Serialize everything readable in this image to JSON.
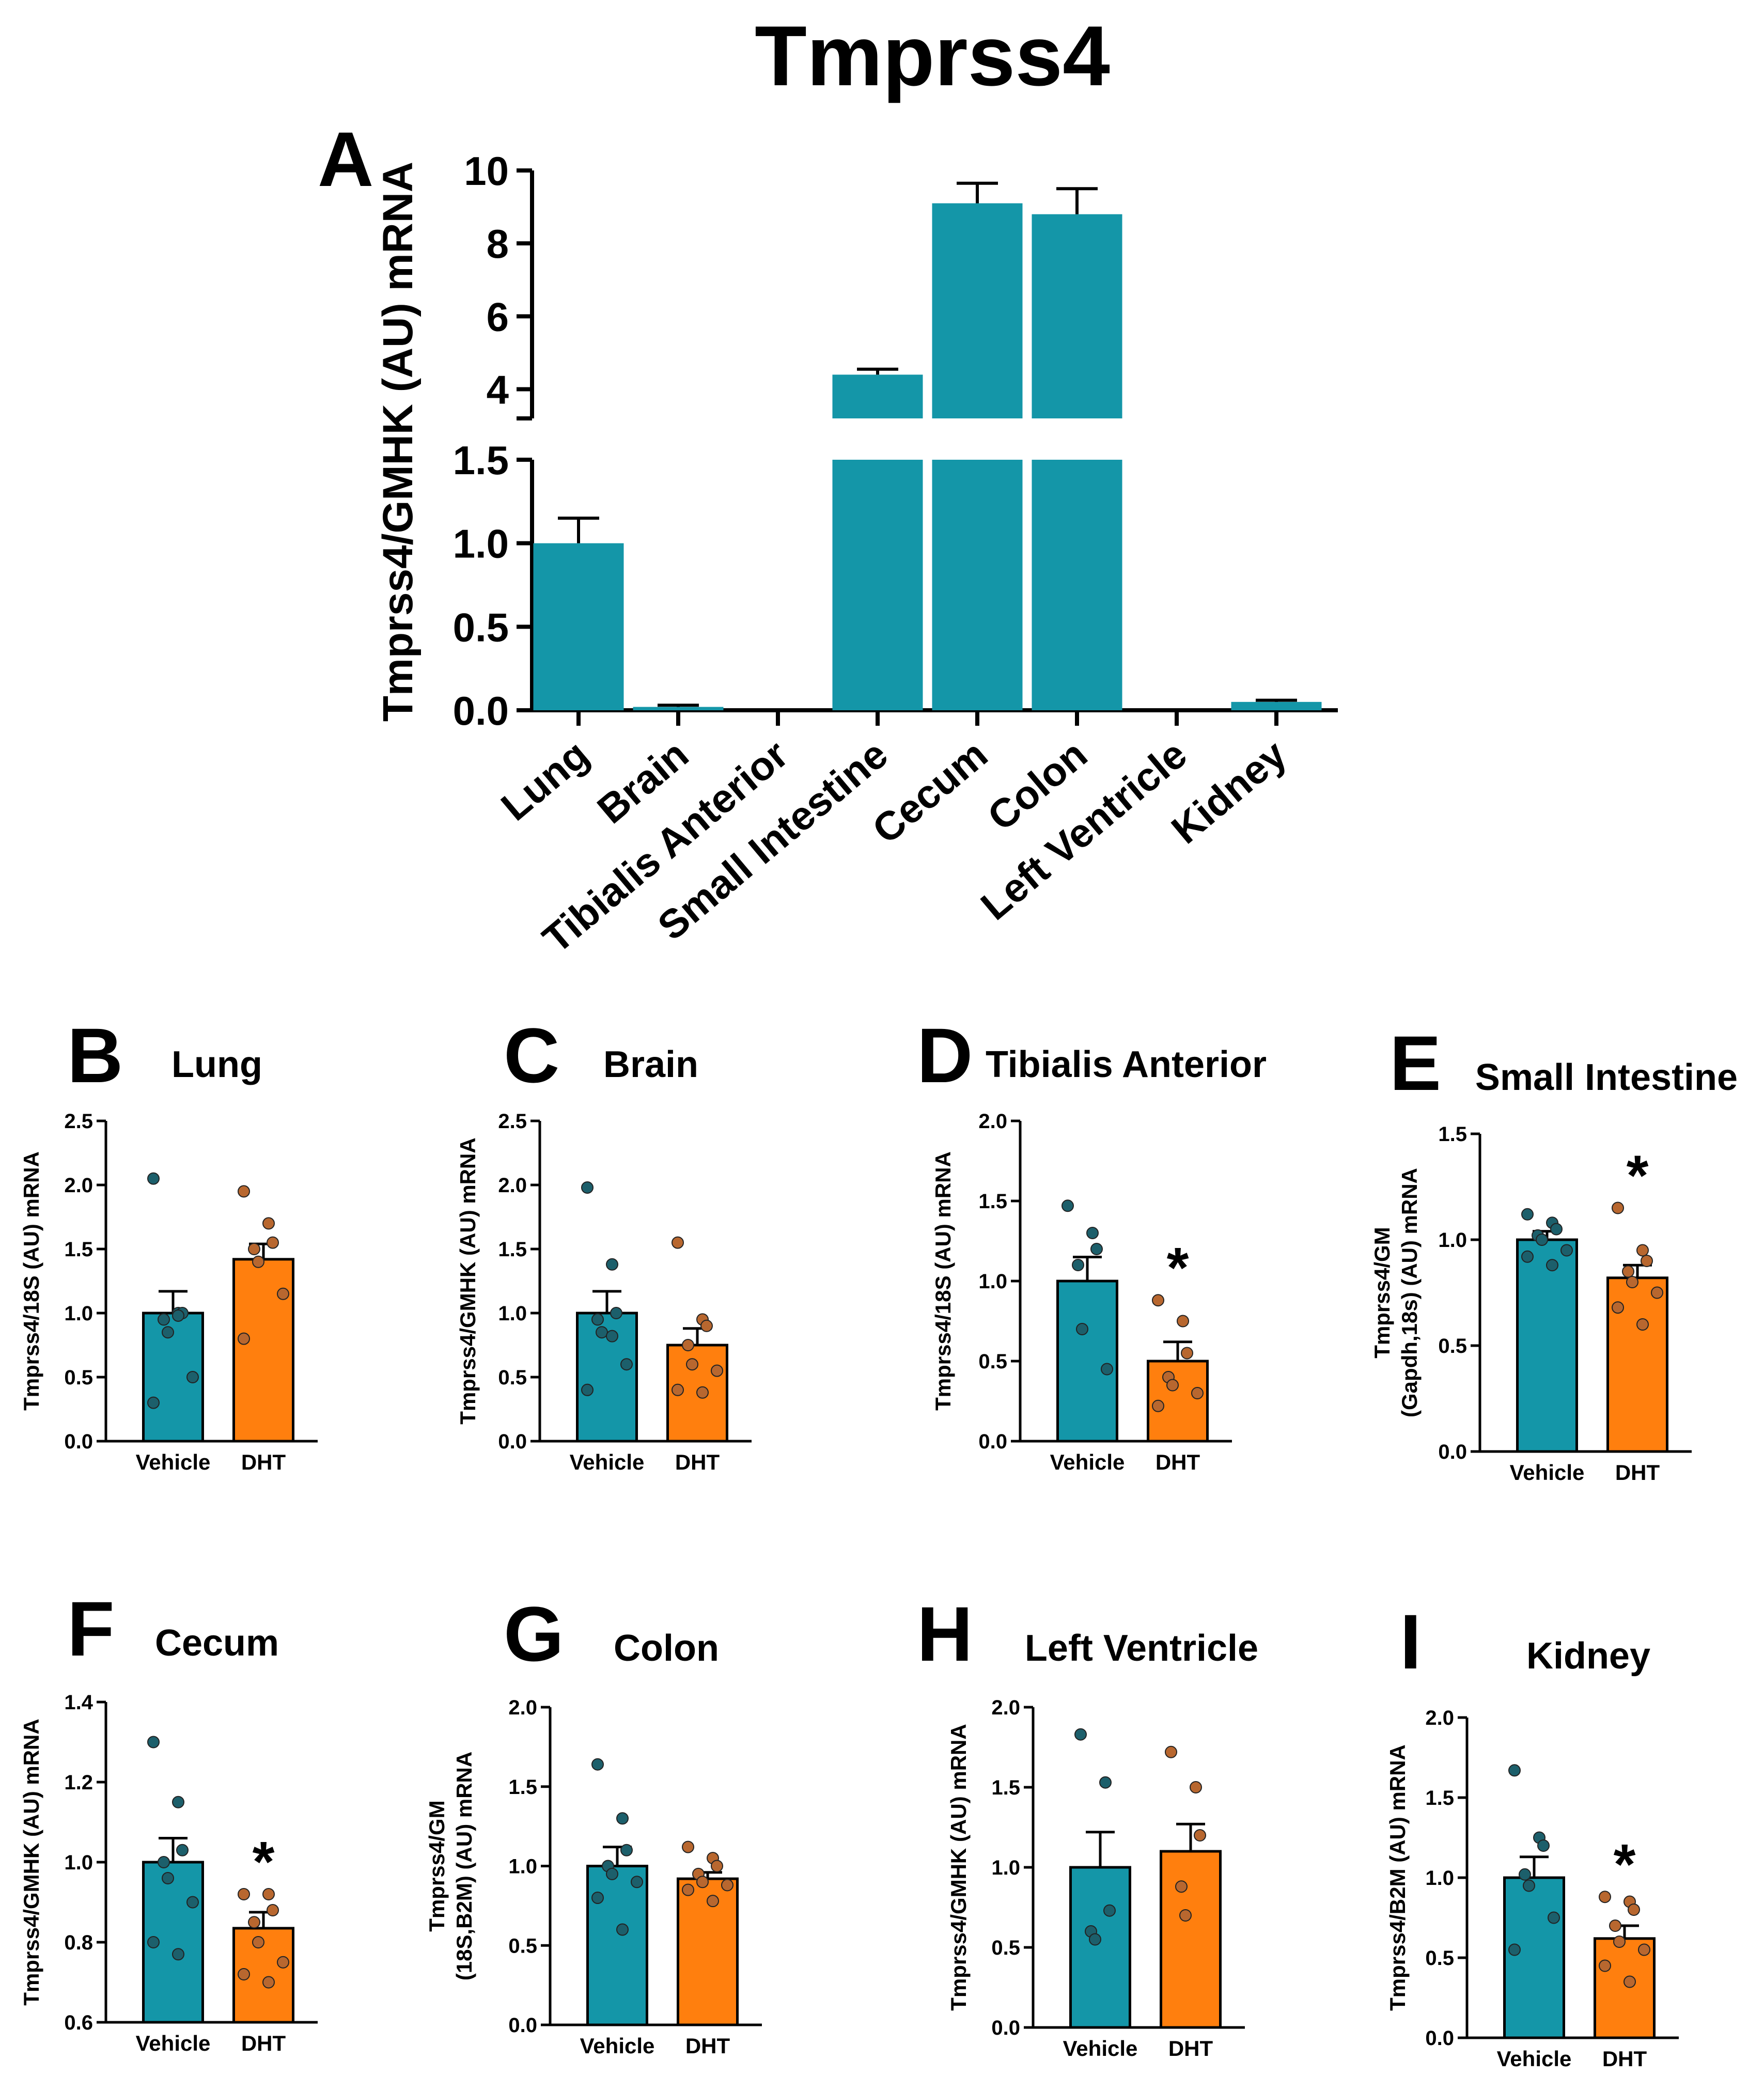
{
  "figure_title": "Tmprss4",
  "colors": {
    "teal": "#1496a8",
    "orange": "#ff7f0e",
    "teal_dot": "#1c5f6b",
    "orange_dot": "#b8672f",
    "axis": "#000000"
  },
  "chart_data": [
    {
      "id": "A",
      "letter": "A",
      "type": "bar",
      "title": "",
      "ylabel": "Tmprss4/GMHK (AU) mRNA",
      "categories": [
        "Lung",
        "Brain",
        "Tibialis Anterior",
        "Small Intestine",
        "Cecum",
        "Colon",
        "Left Ventricle",
        "Kidney"
      ],
      "values": [
        1.0,
        0.02,
        0.0,
        4.4,
        9.1,
        8.8,
        0.0,
        0.05
      ],
      "errors": [
        0.15,
        0.01,
        0.0,
        0.15,
        0.55,
        0.7,
        0.0,
        0.01
      ],
      "broken_axis": {
        "lower_ylim": [
          0,
          1.5
        ],
        "upper_ylim": [
          3.2,
          10
        ]
      },
      "lower_ticks": [
        "0.0",
        "0.5",
        "1.0",
        "1.5"
      ],
      "upper_ticks": [
        "4",
        "6",
        "8",
        "10"
      ]
    },
    {
      "id": "B",
      "letter": "B",
      "type": "bar",
      "title": "Lung",
      "ylabel": "Tmprss4/18S (AU) mRNA",
      "categories": [
        "Vehicle",
        "DHT"
      ],
      "values": [
        1.0,
        1.42
      ],
      "errors": [
        0.17,
        0.12
      ],
      "points": [
        [
          2.05,
          1.0,
          1.0,
          0.95,
          0.85,
          0.5,
          0.3,
          0.98
        ],
        [
          1.95,
          1.7,
          1.55,
          1.5,
          1.4,
          1.15,
          0.8
        ]
      ],
      "ylim": [
        0,
        2.5
      ],
      "ticks": [
        "0.0",
        "0.5",
        "1.0",
        "1.5",
        "2.0",
        "2.5"
      ],
      "sig": ""
    },
    {
      "id": "C",
      "letter": "C",
      "type": "bar",
      "title": "Brain",
      "ylabel": "Tmprss4/GMHK (AU) mRNA",
      "categories": [
        "Vehicle",
        "DHT"
      ],
      "values": [
        1.0,
        0.75
      ],
      "errors": [
        0.17,
        0.13
      ],
      "points": [
        [
          1.98,
          1.38,
          1.0,
          0.95,
          0.85,
          0.6,
          0.4,
          0.82
        ],
        [
          1.55,
          0.95,
          0.9,
          0.75,
          0.6,
          0.55,
          0.4,
          0.38
        ]
      ],
      "ylim": [
        0,
        2.5
      ],
      "ticks": [
        "0.0",
        "0.5",
        "1.0",
        "1.5",
        "2.0",
        "2.5"
      ],
      "sig": ""
    },
    {
      "id": "D",
      "letter": "D",
      "type": "bar",
      "title": "Tibialis Anterior",
      "ylabel": "Tmprss4/18S (AU) mRNA",
      "categories": [
        "Vehicle",
        "DHT"
      ],
      "values": [
        1.0,
        0.5
      ],
      "errors": [
        0.15,
        0.12
      ],
      "points": [
        [
          1.47,
          1.3,
          1.2,
          1.1,
          0.7,
          0.45
        ],
        [
          0.88,
          0.75,
          0.55,
          0.4,
          0.35,
          0.3,
          0.22
        ]
      ],
      "ylim": [
        0,
        2.0
      ],
      "ticks": [
        "0.0",
        "0.5",
        "1.0",
        "1.5",
        "2.0"
      ],
      "sig": "*"
    },
    {
      "id": "E",
      "letter": "E",
      "type": "bar",
      "title": "Small Intestine",
      "ylabel": "Tmprss4/GM (Gapdh,18s) (AU) mRNA",
      "categories": [
        "Vehicle",
        "DHT"
      ],
      "values": [
        1.0,
        0.82
      ],
      "errors": [
        0.04,
        0.06
      ],
      "points": [
        [
          1.12,
          1.08,
          1.05,
          1.02,
          1.0,
          0.95,
          0.92,
          0.88
        ],
        [
          1.15,
          0.95,
          0.9,
          0.85,
          0.8,
          0.75,
          0.68,
          0.6
        ]
      ],
      "ylim": [
        0,
        1.5
      ],
      "ticks": [
        "0.0",
        "0.5",
        "1.0",
        "1.5"
      ],
      "sig": "*"
    },
    {
      "id": "F",
      "letter": "F",
      "type": "bar",
      "title": "Cecum",
      "ylabel": "Tmprss4/GMHK (AU) mRNA",
      "categories": [
        "Vehicle",
        "DHT"
      ],
      "values": [
        1.0,
        0.835
      ],
      "errors": [
        0.06,
        0.04
      ],
      "points": [
        [
          1.3,
          1.15,
          1.03,
          1.0,
          0.96,
          0.9,
          0.8,
          0.77
        ],
        [
          0.92,
          0.92,
          0.88,
          0.85,
          0.8,
          0.75,
          0.72,
          0.7
        ]
      ],
      "ylim": [
        0.6,
        1.4
      ],
      "ticks": [
        "0.6",
        "0.8",
        "1.0",
        "1.2",
        "1.4"
      ],
      "sig": "*"
    },
    {
      "id": "G",
      "letter": "G",
      "type": "bar",
      "title": "Colon",
      "ylabel": "Tmprss4/GM (18S,B2M) (AU) mRNA",
      "categories": [
        "Vehicle",
        "DHT"
      ],
      "values": [
        1.0,
        0.92
      ],
      "errors": [
        0.12,
        0.04
      ],
      "points": [
        [
          1.64,
          1.3,
          1.1,
          1.0,
          0.95,
          0.9,
          0.8,
          0.6
        ],
        [
          1.12,
          1.05,
          1.0,
          0.95,
          0.9,
          0.88,
          0.85,
          0.78
        ]
      ],
      "ylim": [
        0,
        2.0
      ],
      "ticks": [
        "0.0",
        "0.5",
        "1.0",
        "1.5",
        "2.0"
      ],
      "sig": ""
    },
    {
      "id": "H",
      "letter": "H",
      "type": "bar",
      "title": "Left Ventricle",
      "ylabel": "Tmprss4/GMHK (AU) mRNA",
      "categories": [
        "Vehicle",
        "DHT"
      ],
      "values": [
        1.0,
        1.1
      ],
      "errors": [
        0.22,
        0.17
      ],
      "points": [
        [
          1.83,
          1.53,
          0.73,
          0.6,
          0.55
        ],
        [
          1.72,
          1.5,
          1.2,
          0.88,
          0.7
        ]
      ],
      "ylim": [
        0,
        2.0
      ],
      "ticks": [
        "0.0",
        "0.5",
        "1.0",
        "1.5",
        "2.0"
      ],
      "sig": ""
    },
    {
      "id": "I",
      "letter": "I",
      "type": "bar",
      "title": "Kidney",
      "ylabel": "Tmprss4/B2M (AU) mRNA",
      "categories": [
        "Vehicle",
        "DHT"
      ],
      "values": [
        1.0,
        0.62
      ],
      "errors": [
        0.13,
        0.08
      ],
      "points": [
        [
          1.67,
          1.25,
          1.2,
          1.02,
          0.95,
          0.75,
          0.55
        ],
        [
          0.88,
          0.85,
          0.8,
          0.7,
          0.6,
          0.55,
          0.45,
          0.35
        ]
      ],
      "ylim": [
        0,
        2.0
      ],
      "ticks": [
        "0.0",
        "0.5",
        "1.0",
        "1.5",
        "2.0"
      ],
      "sig": "*"
    }
  ]
}
